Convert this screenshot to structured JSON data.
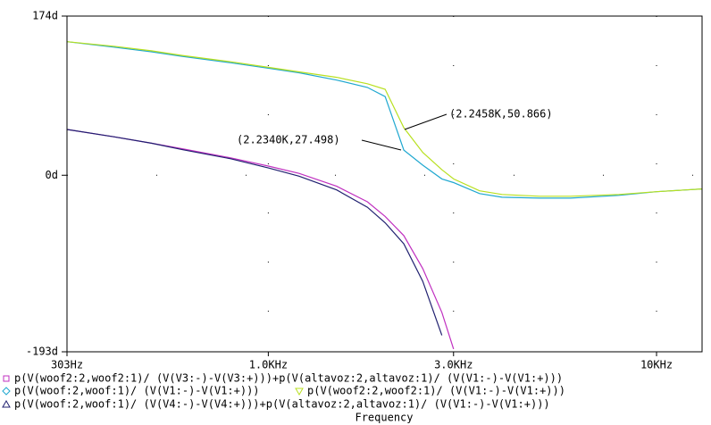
{
  "chart_data": {
    "type": "line",
    "x_label": "Frequency",
    "xscale": "log",
    "xlim": [
      303,
      13100
    ],
    "xticks": [
      {
        "value": 303,
        "label": "303Hz"
      },
      {
        "value": 1000,
        "label": "1.0KHz"
      },
      {
        "value": 3000,
        "label": "3.0KHz"
      },
      {
        "value": 10000,
        "label": "10KHz"
      }
    ],
    "ylim": [
      -193,
      174
    ],
    "yticks": [
      {
        "value": -193,
        "label": "-193d"
      },
      {
        "value": 0,
        "label": "0d"
      },
      {
        "value": 174,
        "label": "174d"
      }
    ],
    "grid": true,
    "x": [
      303,
      400,
      500,
      600,
      800,
      1000,
      1200,
      1500,
      1800,
      2000,
      2234,
      2500,
      2800,
      3000,
      3500,
      4000,
      5000,
      6000,
      8000,
      10000,
      13100
    ],
    "series": [
      {
        "name": "p(V(woof2:2,woof2:1)/ (V(V3:-)-V(V3:+)))+p(V(altavoz:2,altavoz:1)/ (V(V1:-)-V(V1:+)))",
        "color": "#c030c0",
        "marker": "square",
        "values": [
          50,
          42,
          35,
          29,
          19,
          10,
          2,
          -12,
          -29,
          -45,
          -66,
          -102,
          -150,
          -190,
          null,
          null,
          null,
          null,
          null,
          null,
          null
        ]
      },
      {
        "name": "p(V(woof:2,woof:1)/ (V(V1:-)-V(V1:+)))",
        "color": "#20a8d0",
        "marker": "diamond",
        "values": [
          146,
          140,
          135,
          130,
          123,
          117,
          112,
          104,
          96,
          86,
          27.498,
          11,
          -4,
          -8,
          -20,
          -24,
          -25,
          -25,
          -22,
          -18,
          -15
        ]
      },
      {
        "name": "p(V(woof2:2,woof2:1)/ (V(V1:-)-V(V1:+)))",
        "color": "#b8e020",
        "marker": "triangle-down",
        "values": [
          146,
          141,
          136,
          131,
          124,
          118,
          113,
          107,
          100,
          94,
          52,
          25,
          6,
          -4,
          -17,
          -21,
          -23,
          -23,
          -21,
          -18,
          -15
        ]
      },
      {
        "name": "p(V(woof:2,woof:1)/ (V(V4:-)-V(V4:+)))+p(V(altavoz:2,altavoz:1)/ (V(V1:-)-V(V1:+)))",
        "color": "#202070",
        "marker": "triangle-up",
        "values": [
          50,
          42,
          35,
          28,
          18,
          8,
          -1,
          -16,
          -35,
          -52,
          -75,
          -116,
          -175,
          null,
          null,
          null,
          null,
          null,
          null,
          null,
          null
        ]
      }
    ],
    "annotations": [
      "(2.2458K,50.866)",
      "(2.2340K,27.498)"
    ]
  }
}
